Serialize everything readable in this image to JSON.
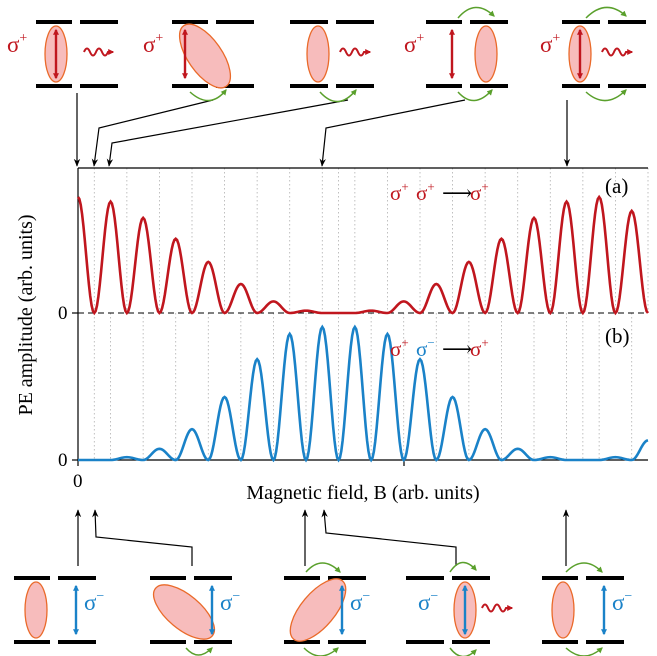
{
  "colors": {
    "red": "#c0161e",
    "blue": "#1a82c8",
    "green": "#5aa02c",
    "ellipse_fill": "#f7bcbc",
    "ellipse_stroke": "#ea6a2a",
    "axis": "#000000",
    "grid": "#b0b0b0"
  },
  "text": {
    "ylabel": "PE amplitude (arb. units)",
    "xlabel": "Magnetic field, B (arb. units)",
    "panel_a": "(a)",
    "panel_b": "(b)",
    "zero_a": "0",
    "zero_b": "0",
    "x_zero": "0",
    "sigma": "σ",
    "plus": "+",
    "minus": "−",
    "arrow": "⟶"
  },
  "chart_data": [
    {
      "type": "line",
      "panel": "(a)",
      "annotation": "σ⁺σ⁺⟶σ⁺",
      "xlabel": "Magnetic field, B (arb. units)",
      "ylabel": "PE amplitude (arb. units)",
      "x_tick_labels": [
        "0"
      ],
      "y_tick_labels": [
        "0"
      ],
      "xlim": [
        0,
        17.5
      ],
      "ylim": [
        0,
        1.25
      ],
      "zero_line": "dashed",
      "grid": "vertical dotted lines at oscillation minima",
      "series": [
        {
          "x": [
            0,
            0.5,
            1,
            1.5,
            2,
            2.5,
            3,
            3.5,
            4,
            4.5,
            5,
            5.5,
            6,
            6.5,
            7,
            7.5,
            8,
            8.5,
            9,
            9.5,
            10,
            10.5,
            11,
            11.5,
            12,
            12.5,
            13,
            13.5,
            14,
            14.5,
            15,
            15.5,
            16,
            16.5,
            17,
            17.5
          ],
          "y": [
            1.0,
            0.0,
            0.96,
            0.0,
            0.82,
            0.0,
            0.64,
            0.0,
            0.44,
            0.0,
            0.25,
            0.0,
            0.1,
            0.0,
            0.02,
            0.0,
            0.0,
            0.0,
            0.02,
            0.0,
            0.1,
            0.0,
            0.25,
            0.0,
            0.44,
            0.0,
            0.64,
            0.0,
            0.82,
            0.0,
            0.96,
            0.0,
            1.0,
            0.0,
            0.88,
            0.0
          ]
        }
      ]
    },
    {
      "type": "line",
      "panel": "(b)",
      "annotation": "σ⁺σ⁻⟶σ⁺",
      "xlim": [
        0,
        17.5
      ],
      "ylim": [
        0,
        1.05
      ],
      "y_tick_labels": [
        "0"
      ],
      "grid": "vertical dotted lines at oscillation minima",
      "series": [
        {
          "x": [
            0,
            0.5,
            1,
            1.5,
            2,
            2.5,
            3,
            3.5,
            4,
            4.5,
            5,
            5.5,
            6,
            6.5,
            7,
            7.5,
            8,
            8.5,
            9,
            9.5,
            10,
            10.5,
            11,
            11.5,
            12,
            12.5,
            13,
            13.5,
            14,
            14.5,
            15,
            15.5,
            16,
            16.5,
            17,
            17.5
          ],
          "y": [
            0.0,
            0.0,
            0.0,
            0.02,
            0.0,
            0.08,
            0.0,
            0.22,
            0.0,
            0.45,
            0.0,
            0.72,
            0.0,
            0.9,
            0.0,
            0.95,
            0.0,
            0.95,
            0.0,
            0.9,
            0.0,
            0.72,
            0.0,
            0.45,
            0.0,
            0.22,
            0.0,
            0.08,
            0.0,
            0.02,
            0.0,
            0.0,
            0.0,
            0.02,
            0.0,
            0.14
          ]
        }
      ]
    }
  ]
}
